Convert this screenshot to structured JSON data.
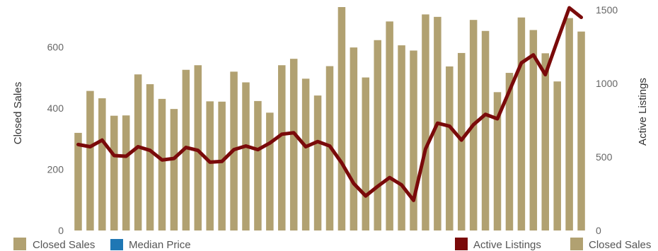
{
  "chart_data": {
    "type": "bar",
    "y_left_label": "Closed Sales",
    "y_right_label": "Active Listings",
    "y_left_range": [
      0,
      730
    ],
    "y_right_range": [
      0,
      1520
    ],
    "y_left_ticks": [
      0,
      200,
      400,
      600
    ],
    "y_right_ticks": [
      0,
      500,
      1000,
      1500
    ],
    "grid": false,
    "colors": {
      "closed_sales": "#b1a171",
      "median_price": "#1f77b4",
      "active_listings": "#7a0a0a"
    },
    "series": [
      {
        "name": "Closed Sales",
        "type": "bar",
        "axis": "left",
        "values": [
          319,
          456,
          432,
          375,
          376,
          510,
          478,
          430,
          397,
          525,
          540,
          422,
          421,
          519,
          484,
          423,
          385,
          540,
          561,
          496,
          441,
          537,
          730,
          598,
          500,
          622,
          683,
          605,
          588,
          706,
          698,
          536,
          580,
          688,
          652,
          452,
          515,
          696,
          655,
          579,
          487,
          694,
          650
        ]
      },
      {
        "name": "Active Listings",
        "type": "line",
        "axis": "right",
        "values": [
          585,
          570,
          615,
          510,
          505,
          570,
          545,
          480,
          490,
          565,
          545,
          465,
          470,
          550,
          575,
          550,
          595,
          655,
          665,
          570,
          605,
          575,
          460,
          320,
          235,
          300,
          360,
          310,
          205,
          555,
          730,
          710,
          615,
          720,
          790,
          760,
          950,
          1140,
          1195,
          1060,
          1290,
          1515,
          1450
        ]
      }
    ],
    "legend": {
      "left": [
        "Closed Sales",
        "Median Price"
      ],
      "right": [
        "Active Listings",
        "Closed Sales"
      ],
      "placement": "bottom"
    }
  }
}
